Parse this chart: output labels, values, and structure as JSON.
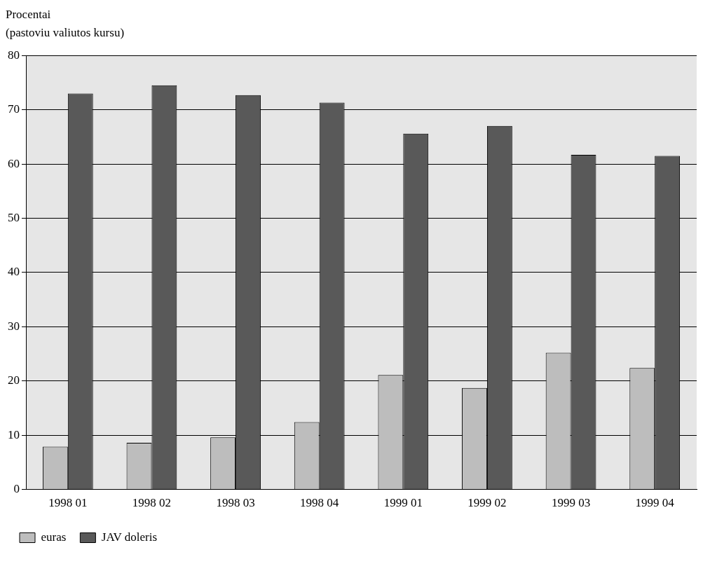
{
  "chart_data": {
    "type": "bar",
    "ylabel": "Procentai\n(pastoviu valiutos kursu)",
    "categories": [
      "1998 01",
      "1998 02",
      "1998 03",
      "1998 04",
      "1999 01",
      "1999 02",
      "1999 03",
      "1999 04"
    ],
    "series": [
      {
        "name": "euras",
        "color": "#bdbdbd",
        "values": [
          7.9,
          8.6,
          9.6,
          12.4,
          21.1,
          18.7,
          25.2,
          22.4
        ]
      },
      {
        "name": "JAV doleris",
        "color": "#595959",
        "values": [
          73.0,
          74.5,
          72.7,
          71.3,
          65.6,
          67.0,
          61.7,
          61.5
        ]
      }
    ],
    "ylim": [
      0,
      80
    ],
    "yticks": [
      0,
      10,
      20,
      30,
      40,
      50,
      60,
      70,
      80
    ],
    "grid": "y",
    "legend": "bottom left"
  }
}
